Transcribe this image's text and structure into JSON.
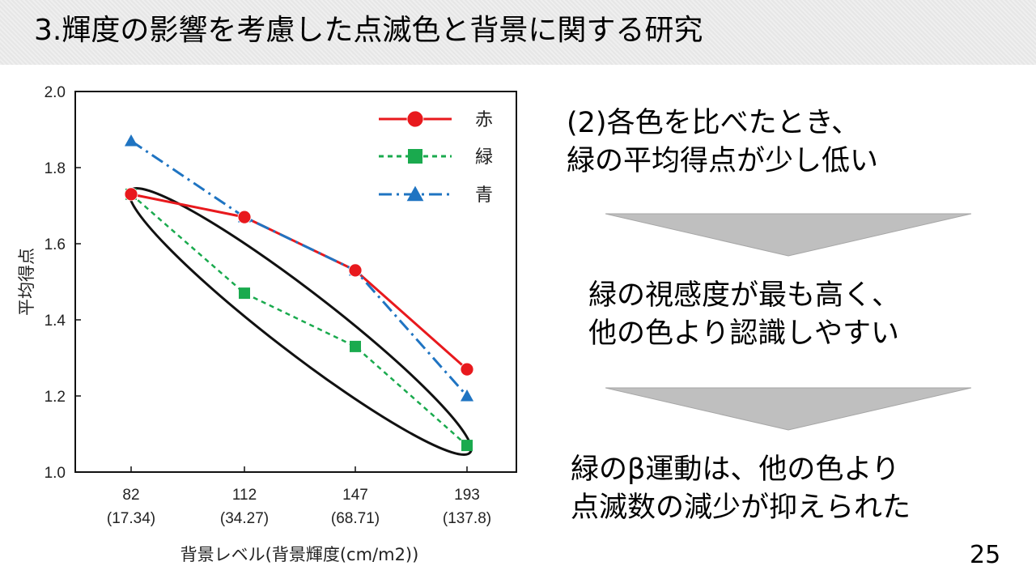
{
  "slide": {
    "title": "3.輝度の影響を考慮した点滅色と背景に関する研究",
    "page_number": "25",
    "notes": {
      "block1": [
        "(2)各色を比べたとき、",
        "緑の平均得点が少し低い"
      ],
      "block2": [
        "緑の視感度が最も高く、",
        "他の色より認識しやすい"
      ],
      "block3": [
        "緑のβ運動は、他の色より",
        "点滅数の減少が抑えられた"
      ]
    },
    "colors": {
      "red": "#e8191d",
      "green": "#1aaa4e",
      "blue": "#1f74c2",
      "title_bg": "#e6e6e6",
      "arrow": "#bfbfbf"
    }
  },
  "chart_data": {
    "type": "line",
    "categories": [
      "82",
      "112",
      "147",
      "193"
    ],
    "category_sublabels": [
      "(17.34)",
      "(34.27)",
      "(68.71)",
      "(137.8)"
    ],
    "series": [
      {
        "name": "赤",
        "values": [
          1.73,
          1.67,
          1.53,
          1.27
        ],
        "marker": "circle",
        "line": "solid"
      },
      {
        "name": "緑",
        "values": [
          1.73,
          1.47,
          1.33,
          1.07
        ],
        "marker": "square",
        "line": "dashed"
      },
      {
        "name": "青",
        "values": [
          1.87,
          1.67,
          1.53,
          1.2
        ],
        "marker": "triangle",
        "line": "dash-dot"
      }
    ],
    "xlabel": "背景レベル(背景輝度(cm/m2))",
    "ylabel": "平均得点",
    "ylim": [
      1.0,
      2.0
    ],
    "yticks": [
      "1.0",
      "1.2",
      "1.4",
      "1.6",
      "1.8",
      "2.0"
    ],
    "legend_position": "top-right",
    "grid": false,
    "annotation": "ellipse enclosing the 緑 series"
  }
}
